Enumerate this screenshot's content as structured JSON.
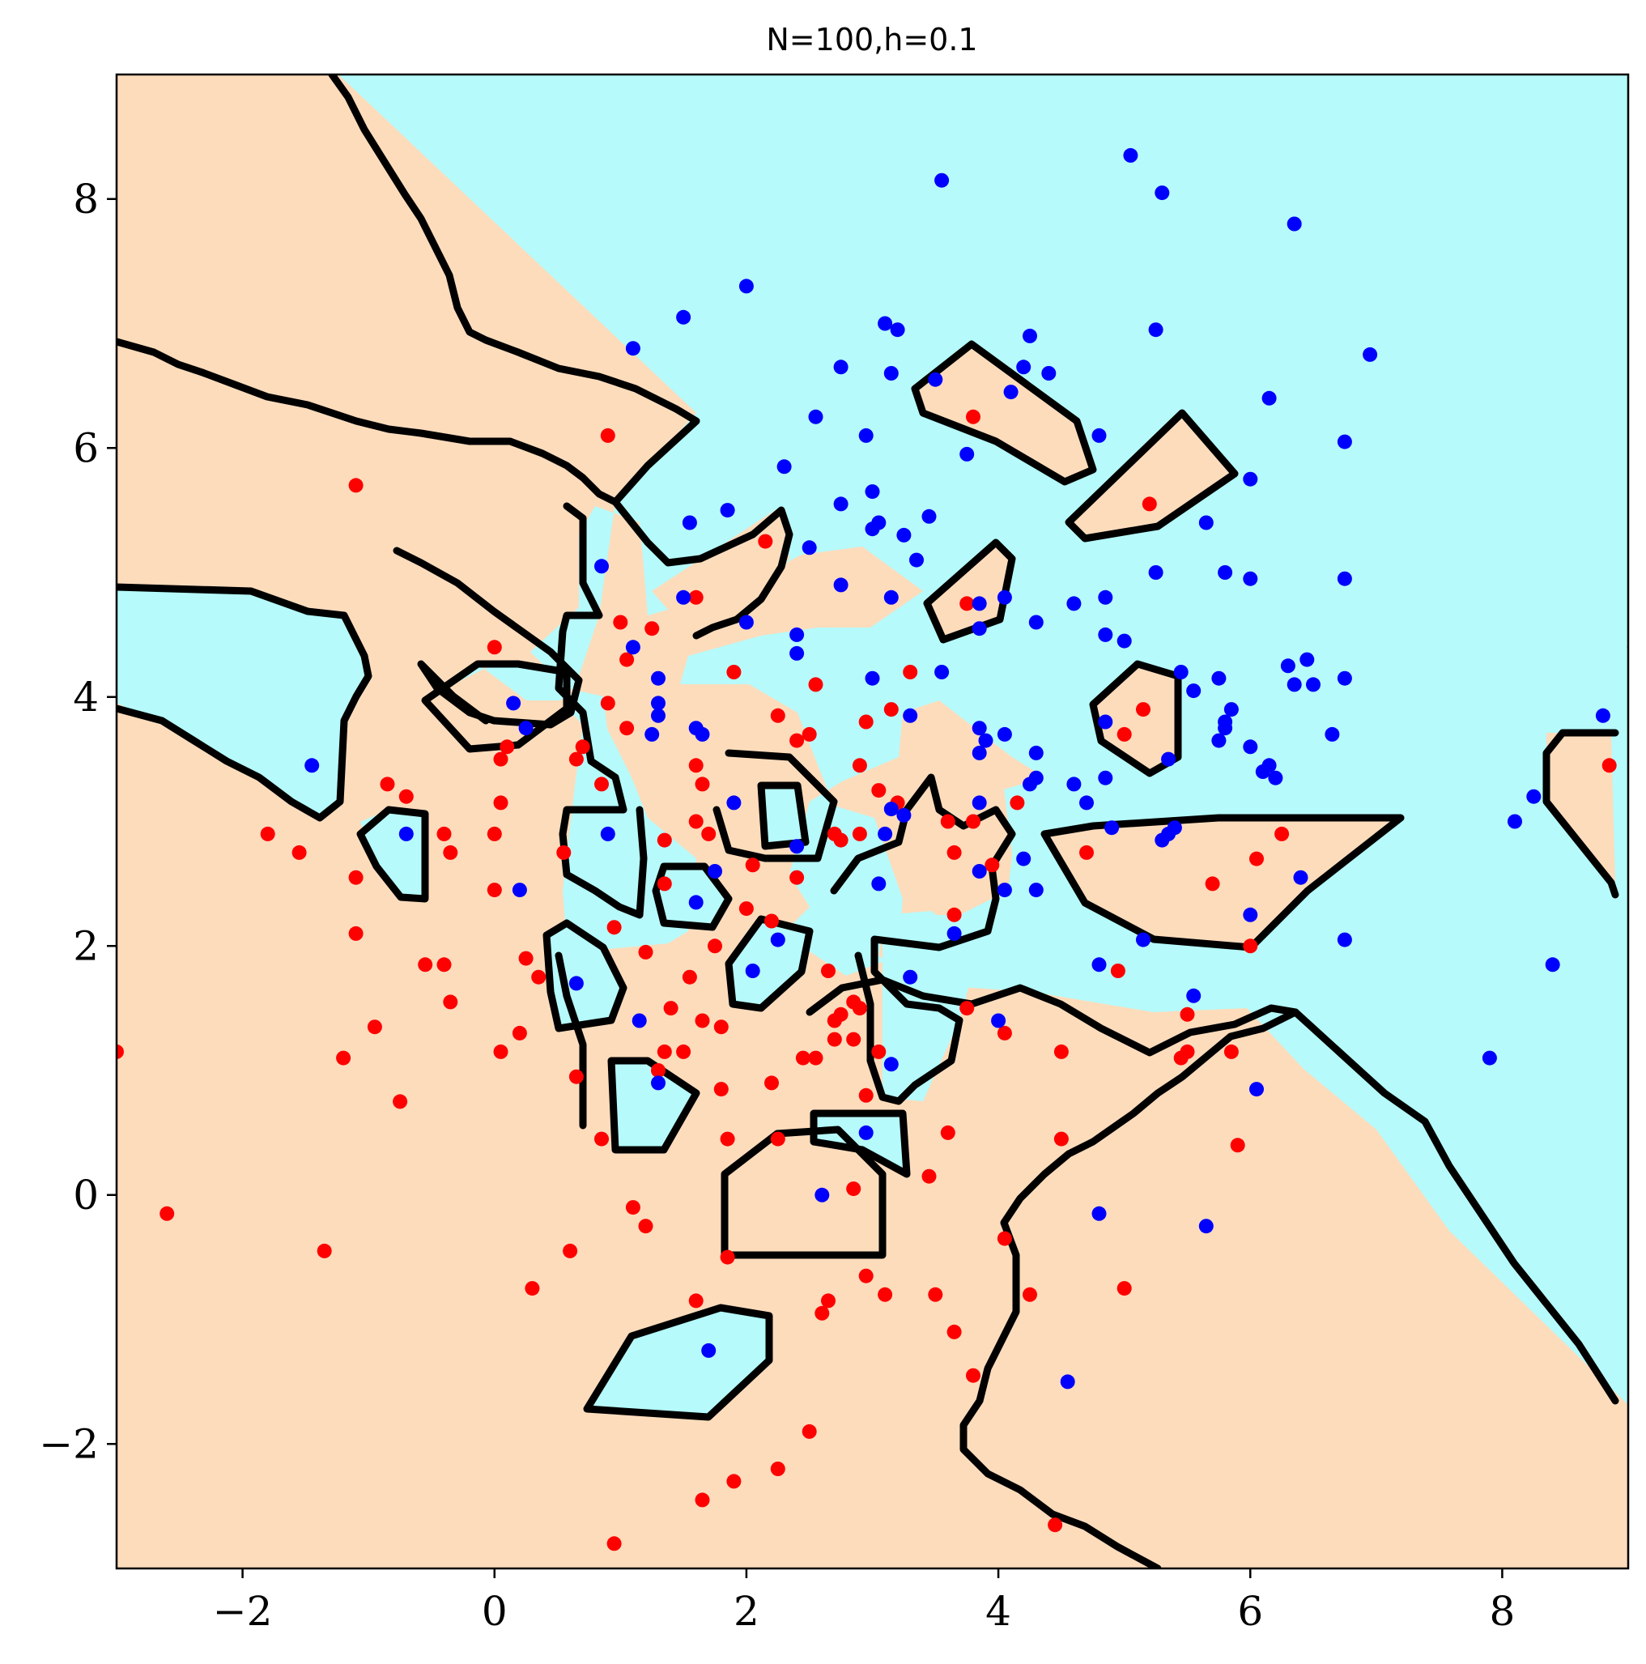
{
  "chart_data": {
    "type": "scatter",
    "title": "N=100,h=0.1",
    "xlabel": "",
    "ylabel": "",
    "xlim": [
      -3,
      9
    ],
    "ylim": [
      -3,
      9
    ],
    "x_ticks": [
      -2,
      0,
      2,
      4,
      6,
      8
    ],
    "y_ticks": [
      -2,
      0,
      2,
      4,
      6,
      8
    ],
    "x_tick_labels": [
      "−2",
      "0",
      "2",
      "4",
      "6",
      "8"
    ],
    "y_tick_labels": [
      "−2",
      "0",
      "2",
      "4",
      "6",
      "8"
    ],
    "grid": false,
    "legend": "none",
    "colors": {
      "class_red": "#ff0000",
      "class_blue": "#0000ff",
      "region_red": "#fddcbc",
      "region_blue": "#b6fafb",
      "boundary": "#000000"
    },
    "series": [
      {
        "color": "#ff0000",
        "points": [
          [
            0.9,
            6.1
          ],
          [
            -1.1,
            5.7
          ],
          [
            0.0,
            4.4
          ],
          [
            0.1,
            3.6
          ],
          [
            0.05,
            3.5
          ],
          [
            -0.85,
            3.3
          ],
          [
            -0.7,
            3.2
          ],
          [
            -1.8,
            2.9
          ],
          [
            -1.55,
            2.75
          ],
          [
            -0.4,
            2.9
          ],
          [
            -0.35,
            2.75
          ],
          [
            -1.1,
            2.55
          ],
          [
            -1.1,
            2.1
          ],
          [
            -0.55,
            1.85
          ],
          [
            -0.4,
            1.85
          ],
          [
            -0.35,
            1.55
          ],
          [
            -0.95,
            1.35
          ],
          [
            -1.2,
            1.1
          ],
          [
            -0.75,
            0.75
          ],
          [
            -3.0,
            1.15
          ],
          [
            -2.6,
            -0.15
          ],
          [
            -1.35,
            -0.45
          ],
          [
            -0.0,
            2.9
          ],
          [
            0.05,
            3.15
          ],
          [
            0.0,
            2.45
          ],
          [
            0.25,
            1.9
          ],
          [
            0.35,
            1.75
          ],
          [
            0.2,
            1.3
          ],
          [
            0.05,
            1.15
          ],
          [
            0.55,
            2.75
          ],
          [
            0.65,
            3.5
          ],
          [
            0.7,
            3.6
          ],
          [
            0.85,
            3.3
          ],
          [
            0.9,
            3.95
          ],
          [
            1.0,
            4.6
          ],
          [
            1.05,
            4.3
          ],
          [
            1.05,
            3.75
          ],
          [
            1.25,
            4.55
          ],
          [
            0.95,
            2.15
          ],
          [
            1.2,
            1.95
          ],
          [
            1.35,
            2.85
          ],
          [
            1.35,
            2.5
          ],
          [
            1.4,
            1.5
          ],
          [
            1.35,
            1.15
          ],
          [
            1.3,
            1.0
          ],
          [
            1.5,
            1.15
          ],
          [
            1.6,
            3.45
          ],
          [
            1.65,
            3.3
          ],
          [
            1.6,
            3.0
          ],
          [
            1.7,
            2.9
          ],
          [
            1.75,
            2.0
          ],
          [
            1.55,
            1.75
          ],
          [
            1.65,
            1.4
          ],
          [
            1.8,
            1.35
          ],
          [
            1.8,
            0.85
          ],
          [
            0.65,
            0.95
          ],
          [
            0.85,
            0.45
          ],
          [
            1.2,
            -0.25
          ],
          [
            1.1,
            -0.1
          ],
          [
            0.6,
            -0.45
          ],
          [
            0.3,
            -0.75
          ],
          [
            1.85,
            0.45
          ],
          [
            1.85,
            -0.5
          ],
          [
            1.6,
            -0.85
          ],
          [
            1.65,
            -2.45
          ],
          [
            1.9,
            -2.3
          ],
          [
            2.25,
            -2.2
          ],
          [
            2.5,
            -1.9
          ],
          [
            0.95,
            -2.8
          ],
          [
            1.9,
            4.2
          ],
          [
            1.6,
            4.8
          ],
          [
            2.15,
            5.25
          ],
          [
            2.25,
            3.85
          ],
          [
            2.4,
            3.65
          ],
          [
            2.5,
            3.7
          ],
          [
            2.55,
            4.1
          ],
          [
            2.05,
            2.65
          ],
          [
            2.0,
            2.3
          ],
          [
            2.2,
            2.2
          ],
          [
            2.4,
            2.55
          ],
          [
            2.2,
            0.9
          ],
          [
            2.25,
            0.45
          ],
          [
            2.45,
            1.1
          ],
          [
            2.55,
            1.1
          ],
          [
            2.65,
            1.8
          ],
          [
            2.7,
            1.4
          ],
          [
            2.7,
            1.25
          ],
          [
            2.75,
            1.45
          ],
          [
            2.85,
            1.55
          ],
          [
            2.9,
            1.5
          ],
          [
            2.85,
            1.25
          ],
          [
            2.95,
            0.8
          ],
          [
            2.7,
            2.9
          ],
          [
            2.75,
            2.85
          ],
          [
            2.9,
            2.9
          ],
          [
            2.9,
            3.45
          ],
          [
            2.95,
            3.8
          ],
          [
            3.05,
            3.25
          ],
          [
            3.15,
            3.9
          ],
          [
            3.2,
            3.15
          ],
          [
            3.05,
            1.15
          ],
          [
            2.85,
            0.05
          ],
          [
            2.95,
            -0.65
          ],
          [
            3.1,
            -0.8
          ],
          [
            2.65,
            -0.85
          ],
          [
            2.6,
            -0.95
          ],
          [
            3.3,
            4.2
          ],
          [
            3.45,
            0.15
          ],
          [
            3.5,
            -0.8
          ],
          [
            3.65,
            -1.1
          ],
          [
            3.6,
            3.0
          ],
          [
            3.65,
            2.75
          ],
          [
            3.65,
            2.25
          ],
          [
            3.8,
            3.0
          ],
          [
            3.75,
            4.75
          ],
          [
            3.8,
            6.25
          ],
          [
            3.6,
            0.5
          ],
          [
            3.75,
            1.5
          ],
          [
            3.8,
            -1.45
          ],
          [
            3.95,
            2.65
          ],
          [
            4.15,
            3.15
          ],
          [
            4.05,
            1.3
          ],
          [
            4.05,
            -0.35
          ],
          [
            4.25,
            -0.8
          ],
          [
            4.5,
            1.15
          ],
          [
            4.5,
            0.45
          ],
          [
            4.45,
            -2.65
          ],
          [
            4.7,
            2.75
          ],
          [
            5.0,
            3.7
          ],
          [
            5.15,
            3.9
          ],
          [
            4.95,
            1.8
          ],
          [
            5.0,
            -0.75
          ],
          [
            5.2,
            5.55
          ],
          [
            5.45,
            1.1
          ],
          [
            5.5,
            1.15
          ],
          [
            5.5,
            1.45
          ],
          [
            5.7,
            2.5
          ],
          [
            5.85,
            1.15
          ],
          [
            5.9,
            0.4
          ],
          [
            6.0,
            2.0
          ],
          [
            6.05,
            2.7
          ],
          [
            6.25,
            2.9
          ],
          [
            8.85,
            3.45
          ]
        ]
      },
      {
        "color": "#0000ff",
        "points": [
          [
            3.55,
            8.15
          ],
          [
            5.05,
            8.35
          ],
          [
            5.3,
            8.05
          ],
          [
            6.35,
            7.8
          ],
          [
            2.0,
            7.3
          ],
          [
            1.5,
            7.05
          ],
          [
            3.1,
            7.0
          ],
          [
            3.2,
            6.95
          ],
          [
            1.1,
            6.8
          ],
          [
            2.75,
            6.65
          ],
          [
            3.15,
            6.6
          ],
          [
            3.5,
            6.55
          ],
          [
            4.1,
            6.45
          ],
          [
            4.25,
            6.9
          ],
          [
            4.2,
            6.65
          ],
          [
            4.4,
            6.6
          ],
          [
            5.25,
            6.95
          ],
          [
            6.95,
            6.75
          ],
          [
            2.55,
            6.25
          ],
          [
            2.95,
            6.1
          ],
          [
            4.8,
            6.1
          ],
          [
            6.15,
            6.4
          ],
          [
            6.75,
            6.05
          ],
          [
            3.75,
            5.95
          ],
          [
            2.3,
            5.85
          ],
          [
            2.75,
            5.55
          ],
          [
            3.0,
            5.65
          ],
          [
            1.85,
            5.5
          ],
          [
            1.55,
            5.4
          ],
          [
            2.5,
            5.2
          ],
          [
            3.0,
            5.35
          ],
          [
            3.05,
            5.4
          ],
          [
            3.25,
            5.3
          ],
          [
            3.45,
            5.45
          ],
          [
            0.85,
            5.05
          ],
          [
            3.35,
            5.1
          ],
          [
            2.75,
            4.9
          ],
          [
            6.0,
            5.75
          ],
          [
            5.65,
            5.4
          ],
          [
            5.8,
            5.0
          ],
          [
            6.0,
            4.95
          ],
          [
            6.75,
            4.95
          ],
          [
            5.25,
            5.0
          ],
          [
            1.5,
            4.8
          ],
          [
            2.0,
            4.6
          ],
          [
            1.1,
            4.4
          ],
          [
            2.4,
            4.5
          ],
          [
            2.4,
            4.35
          ],
          [
            3.15,
            4.8
          ],
          [
            3.85,
            4.75
          ],
          [
            4.05,
            4.8
          ],
          [
            3.85,
            4.55
          ],
          [
            4.3,
            4.6
          ],
          [
            4.6,
            4.75
          ],
          [
            4.85,
            4.8
          ],
          [
            4.85,
            4.5
          ],
          [
            5.0,
            4.45
          ],
          [
            5.45,
            4.2
          ],
          [
            5.55,
            4.05
          ],
          [
            5.75,
            4.15
          ],
          [
            6.3,
            4.25
          ],
          [
            6.35,
            4.1
          ],
          [
            6.45,
            4.3
          ],
          [
            6.5,
            4.1
          ],
          [
            6.75,
            4.15
          ],
          [
            9.05,
            4.4
          ],
          [
            1.3,
            4.15
          ],
          [
            1.3,
            3.95
          ],
          [
            1.3,
            3.85
          ],
          [
            1.25,
            3.7
          ],
          [
            1.6,
            3.75
          ],
          [
            1.65,
            3.7
          ],
          [
            0.15,
            3.95
          ],
          [
            0.25,
            3.75
          ],
          [
            -1.45,
            3.45
          ],
          [
            3.0,
            4.15
          ],
          [
            3.3,
            3.85
          ],
          [
            3.55,
            4.2
          ],
          [
            3.85,
            3.55
          ],
          [
            3.85,
            3.75
          ],
          [
            3.9,
            3.65
          ],
          [
            4.05,
            3.7
          ],
          [
            4.3,
            3.55
          ],
          [
            4.25,
            3.3
          ],
          [
            4.3,
            3.35
          ],
          [
            4.6,
            3.3
          ],
          [
            4.7,
            3.15
          ],
          [
            4.85,
            3.35
          ],
          [
            4.85,
            3.8
          ],
          [
            5.35,
            3.5
          ],
          [
            5.75,
            3.65
          ],
          [
            5.8,
            3.75
          ],
          [
            5.8,
            3.8
          ],
          [
            5.85,
            3.9
          ],
          [
            6.0,
            3.6
          ],
          [
            6.1,
            3.4
          ],
          [
            6.15,
            3.45
          ],
          [
            6.2,
            3.35
          ],
          [
            6.65,
            3.7
          ],
          [
            8.8,
            3.85
          ],
          [
            8.25,
            3.2
          ],
          [
            8.1,
            3.0
          ],
          [
            1.9,
            3.15
          ],
          [
            0.9,
            2.9
          ],
          [
            -0.7,
            2.9
          ],
          [
            0.2,
            2.45
          ],
          [
            1.75,
            2.6
          ],
          [
            1.6,
            2.35
          ],
          [
            2.4,
            2.8
          ],
          [
            3.1,
            2.9
          ],
          [
            3.25,
            3.05
          ],
          [
            3.05,
            2.5
          ],
          [
            3.15,
            3.1
          ],
          [
            3.85,
            3.15
          ],
          [
            3.85,
            2.6
          ],
          [
            4.2,
            2.7
          ],
          [
            4.3,
            2.45
          ],
          [
            4.05,
            2.45
          ],
          [
            4.9,
            2.95
          ],
          [
            5.3,
            2.85
          ],
          [
            5.35,
            2.9
          ],
          [
            5.4,
            2.95
          ],
          [
            6.4,
            2.55
          ],
          [
            2.25,
            2.05
          ],
          [
            2.05,
            1.8
          ],
          [
            0.65,
            1.7
          ],
          [
            3.3,
            1.75
          ],
          [
            3.65,
            2.1
          ],
          [
            5.15,
            2.05
          ],
          [
            4.8,
            1.85
          ],
          [
            5.55,
            1.6
          ],
          [
            6.0,
            2.25
          ],
          [
            6.75,
            2.05
          ],
          [
            8.4,
            1.85
          ],
          [
            1.15,
            1.4
          ],
          [
            1.3,
            0.9
          ],
          [
            3.15,
            1.05
          ],
          [
            4.0,
            1.4
          ],
          [
            2.95,
            0.5
          ],
          [
            2.6,
            0.0
          ],
          [
            6.05,
            0.85
          ],
          [
            7.9,
            1.1
          ],
          [
            4.8,
            -0.15
          ],
          [
            5.65,
            -0.25
          ],
          [
            1.7,
            -1.25
          ],
          [
            4.55,
            -1.5
          ]
        ]
      }
    ]
  }
}
